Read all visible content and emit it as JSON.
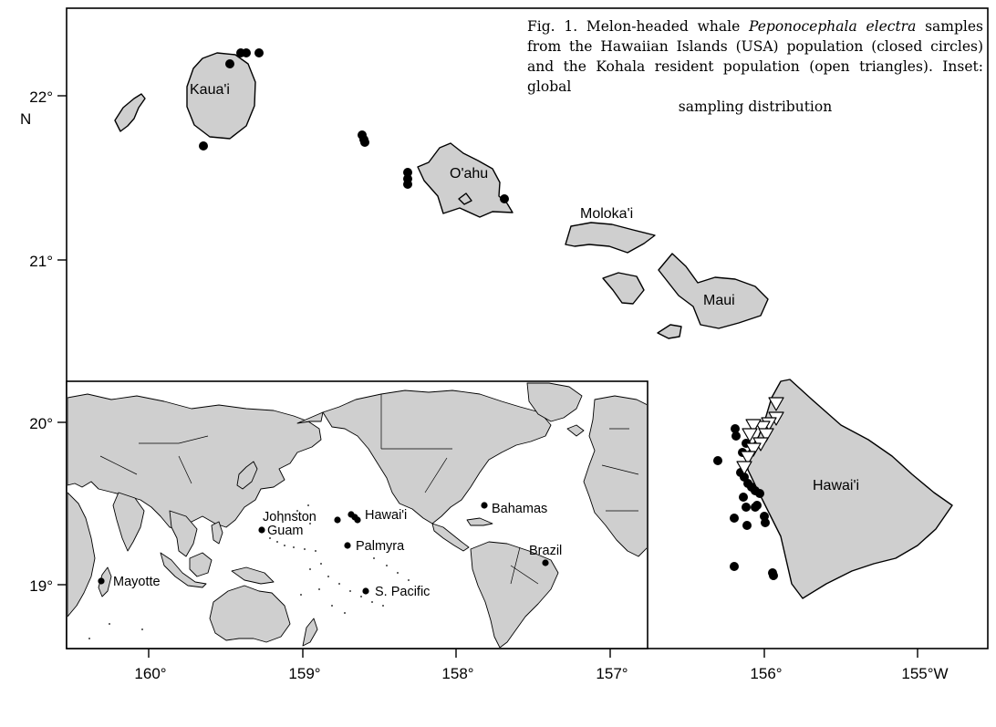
{
  "caption": {
    "prefix": "Fig. 1. Melon-headed whale ",
    "species": "Peponocephala electra",
    "body": " samples from the Hawaiian Islands (USA) population (closed circles) and the Kohala resident population (open triangles). Inset: global",
    "last_line": "sampling distribution"
  },
  "axes": {
    "y_ticks": [
      "22°",
      "21°",
      "20°",
      "19°"
    ],
    "y_unit": "N",
    "x_ticks": [
      "160°",
      "159°",
      "158°",
      "157°",
      "156°",
      "155°W"
    ]
  },
  "islands": {
    "kauai": "Kaua'i",
    "oahu": "O'ahu",
    "molokai": "Moloka'i",
    "maui": "Maui",
    "hawaii": "Hawai'i"
  },
  "inset_labels": {
    "johnston": "Johnston",
    "guam": "Guam",
    "hawaii": "Hawai'i",
    "palmyra": "Palmyra",
    "bahamas": "Bahamas",
    "brazil": "Brazil",
    "mayotte": "Mayotte",
    "south_pacific": "S. Pacific"
  },
  "legend_symbols": {
    "hawaiian_islands_population": "closed circle",
    "kohala_resident_population": "open triangle"
  }
}
